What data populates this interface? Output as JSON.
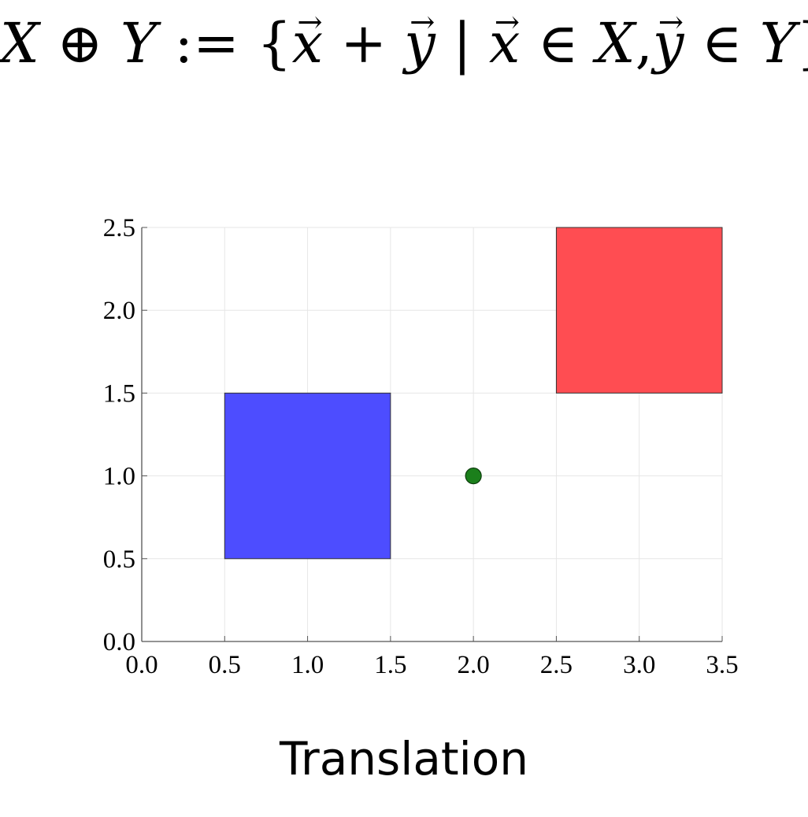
{
  "formula": {
    "X": "X",
    "oplus": "⊕",
    "Y": "Y",
    "defeq": ":=",
    "lbrace": "{",
    "x": "x",
    "plus": "+",
    "y": "y",
    "mid": "|",
    "in": "∈",
    "comma": ",",
    "rbrace": "}"
  },
  "chart_data": {
    "type": "scatter",
    "xlim": [
      0.0,
      3.5
    ],
    "ylim": [
      0.0,
      2.5
    ],
    "xticks": [
      "0.0",
      "0.5",
      "1.0",
      "1.5",
      "2.0",
      "2.5",
      "3.0",
      "3.5"
    ],
    "yticks": [
      "0.0",
      "0.5",
      "1.0",
      "1.5",
      "2.0",
      "2.5"
    ],
    "grid": true,
    "shapes": [
      {
        "x0": 0.5,
        "x1": 1.5,
        "y0": 0.5,
        "y1": 1.5,
        "color": "#4d4dff"
      },
      {
        "x0": 2.5,
        "x1": 3.5,
        "y0": 1.5,
        "y1": 2.5,
        "color": "#ff4d52"
      }
    ],
    "points": [
      {
        "x": 2.0,
        "y": 1.0,
        "color": "#1b7f1b"
      }
    ]
  },
  "caption": "Translation"
}
